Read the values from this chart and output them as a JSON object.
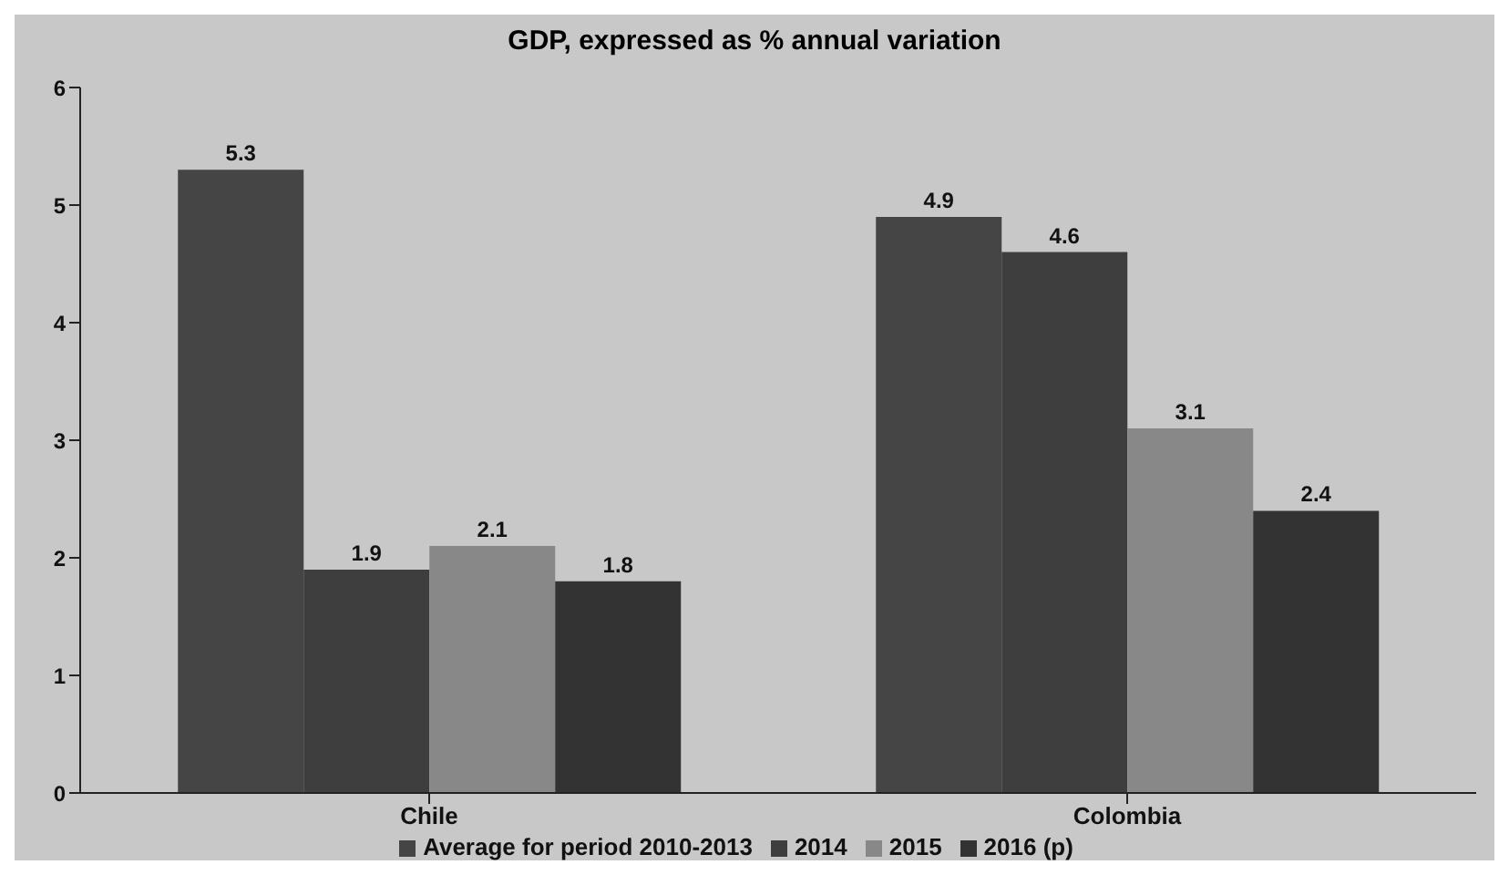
{
  "chart_data": {
    "type": "bar",
    "title": "GDP, expressed as % annual variation",
    "categories": [
      "Chile",
      "Colombia"
    ],
    "series": [
      {
        "name": "Average for period 2010-2013",
        "color": "#454545",
        "values": [
          5.3,
          4.9
        ]
      },
      {
        "name": "2014",
        "color": "#3e3e3e",
        "values": [
          1.9,
          4.6
        ]
      },
      {
        "name": "2015",
        "color": "#888888",
        "values": [
          2.1,
          3.1
        ]
      },
      {
        "name": "2016 (p)",
        "color": "#333333",
        "values": [
          1.8,
          2.4
        ]
      }
    ],
    "ylim": [
      0,
      6
    ],
    "yticks": [
      0,
      1,
      2,
      3,
      4,
      5,
      6
    ],
    "legend": "bottom",
    "data_labels": true
  }
}
